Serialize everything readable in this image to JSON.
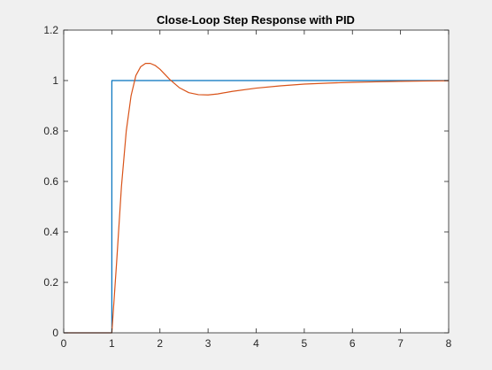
{
  "chart_data": {
    "type": "line",
    "title": "Close-Loop Step Response with PID",
    "xlabel": "",
    "ylabel": "",
    "xlim": [
      0,
      8
    ],
    "ylim": [
      0,
      1.2
    ],
    "xticks": [
      0,
      1,
      2,
      3,
      4,
      5,
      6,
      7,
      8
    ],
    "yticks": [
      0,
      0.2,
      0.4,
      0.6,
      0.8,
      1,
      1.2
    ],
    "xtick_labels": [
      "0",
      "1",
      "2",
      "3",
      "4",
      "5",
      "6",
      "7",
      "8"
    ],
    "ytick_labels": [
      "0",
      "0.2",
      "0.4",
      "0.6",
      "0.8",
      "1",
      "1.2"
    ],
    "grid": false,
    "series": [
      {
        "color": "#0072bd",
        "x": [
          0,
          1,
          1,
          8
        ],
        "y": [
          0,
          0,
          1,
          1
        ]
      },
      {
        "color": "#d95319",
        "x": [
          0,
          1,
          1.1,
          1.2,
          1.3,
          1.4,
          1.5,
          1.6,
          1.7,
          1.8,
          1.9,
          2.0,
          2.2,
          2.4,
          2.6,
          2.8,
          3.0,
          3.2,
          3.5,
          4.0,
          4.5,
          5.0,
          5.5,
          6.0,
          6.5,
          7.0,
          7.5,
          8.0
        ],
        "y": [
          0,
          0,
          0.28,
          0.58,
          0.8,
          0.94,
          1.02,
          1.055,
          1.068,
          1.068,
          1.06,
          1.045,
          1.005,
          0.972,
          0.952,
          0.944,
          0.943,
          0.947,
          0.957,
          0.97,
          0.979,
          0.986,
          0.99,
          0.993,
          0.995,
          0.997,
          0.998,
          0.999
        ]
      }
    ]
  }
}
